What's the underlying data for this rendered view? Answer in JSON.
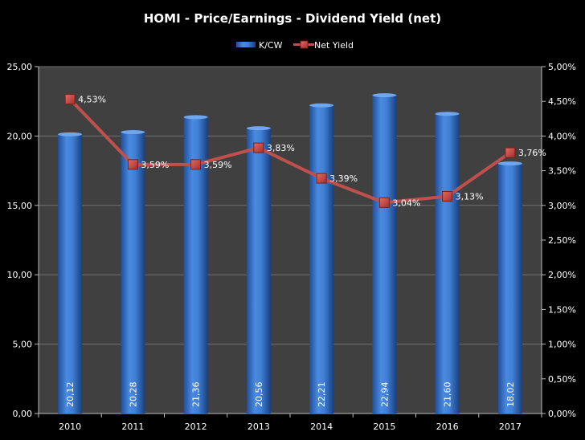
{
  "chart_data": {
    "type": "bar",
    "title": "HOMI - Price/Earnings - Dividend Yield (net)",
    "categories": [
      "2010",
      "2011",
      "2012",
      "2013",
      "2014",
      "2015",
      "2016",
      "2017"
    ],
    "series": [
      {
        "name": "K/CW",
        "type": "bar",
        "axis": "left",
        "values": [
          20.12,
          20.28,
          21.36,
          20.56,
          22.21,
          22.94,
          21.6,
          18.02
        ],
        "labels": [
          "20,12",
          "20,28",
          "21,36",
          "20,56",
          "22,21",
          "22,94",
          "21,60",
          "18,02"
        ]
      },
      {
        "name": "Net Yield",
        "type": "line",
        "axis": "right",
        "values": [
          4.53,
          3.59,
          3.59,
          3.83,
          3.39,
          3.04,
          3.13,
          3.76
        ],
        "labels": [
          "4,53%",
          "3,59%",
          "3,59%",
          "3,83%",
          "3,39%",
          "3,04%",
          "3,13%",
          "3,76%"
        ]
      }
    ],
    "y_left": {
      "range": [
        0,
        25
      ],
      "ticks": [
        "0,00",
        "5,00",
        "10,00",
        "15,00",
        "20,00",
        "25,00"
      ]
    },
    "y_right": {
      "range": [
        0,
        5
      ],
      "ticks": [
        "0,00%",
        "0,50%",
        "1,00%",
        "1,50%",
        "2,00%",
        "2,50%",
        "3,00%",
        "3,50%",
        "4,00%",
        "4,50%",
        "5,00%"
      ]
    },
    "xlabel": "",
    "ylabel": "",
    "grid": true,
    "legend_position": "top",
    "colors": {
      "background": "#000000",
      "plot_area": "#404040",
      "bar": "#3f7fd4",
      "bar_dark": "#1f4f9a",
      "line": "#c0504d",
      "marker": "#d0453f",
      "grid": "#707070"
    }
  }
}
